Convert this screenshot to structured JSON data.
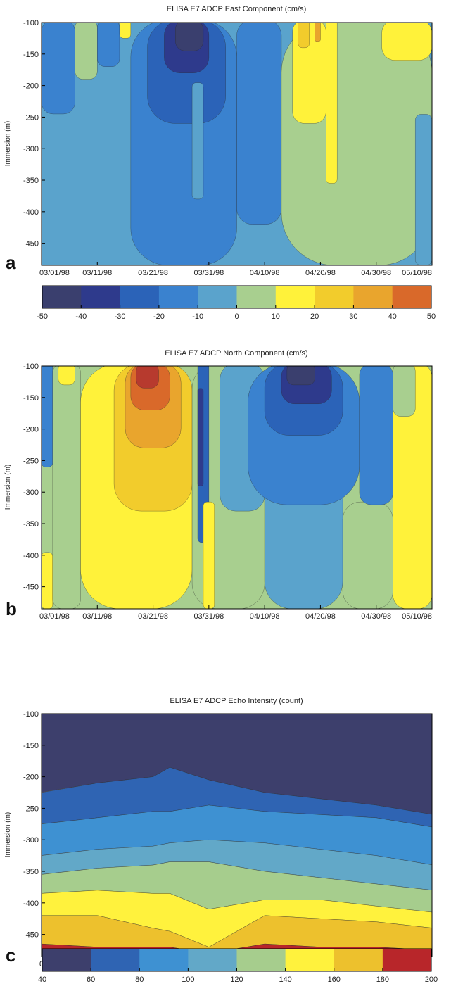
{
  "chart_data": [
    {
      "type": "heatmap",
      "panel_letter": "a",
      "title": "ELISA   E7   ADCP   East Component (cm/s)",
      "ylabel": "Immersion (m)",
      "xlabel": "",
      "ylim": [
        -485,
        -100
      ],
      "yticks": [
        -100,
        -150,
        -200,
        -250,
        -300,
        -350,
        -400,
        -450
      ],
      "ytick_labels": [
        "-100",
        "-150",
        "-200",
        "-250",
        "-300",
        "-350",
        "-400",
        "-450"
      ],
      "xlim": [
        "03/01/98",
        "05/10/98"
      ],
      "xticks": [
        "03/01/98",
        "03/11/98",
        "03/21/98",
        "03/31/98",
        "04/10/98",
        "04/20/98",
        "04/30/98",
        "05/10/98"
      ],
      "background_level": 3,
      "regions": [
        {
          "level": 2,
          "x0": "03/01/98",
          "x1": "03/07/98",
          "y0": -245,
          "y1": -100
        },
        {
          "level": 4,
          "x0": "03/07/98",
          "x1": "03/11/98",
          "y0": -190,
          "y1": -100
        },
        {
          "level": 2,
          "x0": "03/11/98",
          "x1": "03/15/98",
          "y0": -170,
          "y1": -100
        },
        {
          "level": 5,
          "x0": "03/15/98",
          "x1": "03/17/98",
          "y0": -125,
          "y1": -100
        },
        {
          "level": 2,
          "x0": "03/17/98",
          "x1": "04/05/98",
          "y0": -485,
          "y1": -100
        },
        {
          "level": 1,
          "x0": "03/20/98",
          "x1": "04/03/98",
          "y0": -260,
          "y1": -100
        },
        {
          "level": 0,
          "x0": "03/23/98",
          "x1": "03/31/98",
          "y0": -180,
          "y1": -100
        },
        {
          "level": -1,
          "x0": "03/25/98",
          "x1": "03/30/98",
          "y0": -145,
          "y1": -100
        },
        {
          "level": 3,
          "x0": "03/28/98",
          "x1": "03/30/98",
          "y0": -380,
          "y1": -200
        },
        {
          "level": 2,
          "x0": "04/05/98",
          "x1": "04/13/98",
          "y0": -420,
          "y1": -100
        },
        {
          "level": 4,
          "x0": "04/13/98",
          "x1": "05/10/98",
          "y0": -485,
          "y1": -100
        },
        {
          "level": 5,
          "x0": "04/15/98",
          "x1": "04/21/98",
          "y0": -260,
          "y1": -100
        },
        {
          "level": 6,
          "x0": "04/16/98",
          "x1": "04/18/98",
          "y0": -140,
          "y1": -100
        },
        {
          "level": 7,
          "x0": "04/19/98",
          "x1": "04/20/98",
          "y0": -130,
          "y1": -100
        },
        {
          "level": 5,
          "x0": "04/21/98",
          "x1": "04/23/98",
          "y0": -355,
          "y1": -100
        },
        {
          "level": 5,
          "x0": "05/01/98",
          "x1": "05/10/98",
          "y0": -160,
          "y1": -100
        },
        {
          "level": 3,
          "x0": "05/07/98",
          "x1": "05/10/98",
          "y0": -485,
          "y1": -250
        }
      ]
    },
    {
      "type": "heatmap",
      "panel_letter": "b",
      "title": "ELISA   E7   ADCP   North Component (cm/s)",
      "ylabel": "Immersion (m)",
      "xlabel": "",
      "ylim": [
        -485,
        -100
      ],
      "yticks": [
        -100,
        -150,
        -200,
        -250,
        -300,
        -350,
        -400,
        -450
      ],
      "ytick_labels": [
        "-100",
        "-150",
        "-200",
        "-250",
        "-300",
        "-350",
        "-400",
        "-450"
      ],
      "xlim": [
        "03/01/98",
        "05/10/98"
      ],
      "xticks": [
        "03/01/98",
        "03/11/98",
        "03/21/98",
        "03/31/98",
        "04/10/98",
        "04/20/98",
        "04/30/98",
        "05/10/98"
      ],
      "background_level": 4,
      "regions": [
        {
          "level": 2,
          "x0": "03/01/98",
          "x1": "03/03/98",
          "y0": -260,
          "y1": -100
        },
        {
          "level": 5,
          "x0": "03/01/98",
          "x1": "03/03/98",
          "y0": -485,
          "y1": -400
        },
        {
          "level": 4,
          "x0": "03/03/98",
          "x1": "03/08/98",
          "y0": -485,
          "y1": -100
        },
        {
          "level": 5,
          "x0": "03/04/98",
          "x1": "03/07/98",
          "y0": -130,
          "y1": -100
        },
        {
          "level": 5,
          "x0": "03/08/98",
          "x1": "03/28/98",
          "y0": -485,
          "y1": -100
        },
        {
          "level": 6,
          "x0": "03/14/98",
          "x1": "03/28/98",
          "y0": -330,
          "y1": -100
        },
        {
          "level": 7,
          "x0": "03/16/98",
          "x1": "03/26/98",
          "y0": -230,
          "y1": -100
        },
        {
          "level": 8,
          "x0": "03/17/98",
          "x1": "03/24/98",
          "y0": -170,
          "y1": -100
        },
        {
          "level": 9,
          "x0": "03/18/98",
          "x1": "03/22/98",
          "y0": -135,
          "y1": -100
        },
        {
          "level": 4,
          "x0": "03/28/98",
          "x1": "04/10/98",
          "y0": -485,
          "y1": -100
        },
        {
          "level": 1,
          "x0": "03/29/98",
          "x1": "03/31/98",
          "y0": -380,
          "y1": -100
        },
        {
          "level": 0,
          "x0": "03/29/98",
          "x1": "03/30/98",
          "y0": -290,
          "y1": -140
        },
        {
          "level": 5,
          "x0": "03/30/98",
          "x1": "04/01/98",
          "y0": -485,
          "y1": -320
        },
        {
          "level": 3,
          "x0": "04/02/98",
          "x1": "04/10/98",
          "y0": -330,
          "y1": -100
        },
        {
          "level": 3,
          "x0": "04/10/98",
          "x1": "04/24/98",
          "y0": -485,
          "y1": -100
        },
        {
          "level": 2,
          "x0": "04/07/98",
          "x1": "04/27/98",
          "y0": -320,
          "y1": -100
        },
        {
          "level": 1,
          "x0": "04/10/98",
          "x1": "04/24/98",
          "y0": -210,
          "y1": -100
        },
        {
          "level": 0,
          "x0": "04/13/98",
          "x1": "04/22/98",
          "y0": -160,
          "y1": -100
        },
        {
          "level": -1,
          "x0": "04/14/98",
          "x1": "04/19/98",
          "y0": -130,
          "y1": -100
        },
        {
          "level": 4,
          "x0": "04/24/98",
          "x1": "05/03/98",
          "y0": -485,
          "y1": -320
        },
        {
          "level": 2,
          "x0": "04/27/98",
          "x1": "05/03/98",
          "y0": -320,
          "y1": -100
        },
        {
          "level": 5,
          "x0": "05/03/98",
          "x1": "05/10/98",
          "y0": -485,
          "y1": -100
        },
        {
          "level": 4,
          "x0": "05/03/98",
          "x1": "05/07/98",
          "y0": -180,
          "y1": -100
        }
      ]
    },
    {
      "type": "heatmap",
      "panel_letter": "c",
      "title": "ELISA   E7   ADCP   Echo Intensity (count)",
      "ylabel": "Immersion (m)",
      "xlabel": "",
      "ylim": [
        -485,
        -100
      ],
      "yticks": [
        -100,
        -150,
        -200,
        -250,
        -300,
        -350,
        -400,
        -450
      ],
      "ytick_labels": [
        "-100",
        "-150",
        "-200",
        "-250",
        "-300",
        "-350",
        "-400",
        "-450"
      ],
      "xlim": [
        "03/01/98",
        "05/10/98"
      ],
      "xticks": [
        "03/01/98",
        "03/11/98",
        "03/21/98",
        "03/31/98",
        "04/10/98",
        "04/20/98",
        "04/30/98",
        "05/10/98"
      ],
      "band_dates": [
        "03/01/98",
        "03/11/98",
        "03/21/98",
        "03/24/98",
        "03/31/98",
        "04/10/98",
        "04/20/98",
        "04/30/98",
        "05/10/98"
      ],
      "band_levels": [
        0,
        1,
        2,
        3,
        4,
        5,
        6,
        7
      ],
      "band_boundaries": [
        [
          -225,
          -210,
          -200,
          -185,
          -205,
          -225,
          -235,
          -245,
          -260
        ],
        [
          -275,
          -265,
          -255,
          -255,
          -245,
          -255,
          -260,
          -265,
          -280
        ],
        [
          -325,
          -315,
          -310,
          -305,
          -300,
          -305,
          -315,
          -325,
          -340
        ],
        [
          -355,
          -345,
          -340,
          -335,
          -335,
          -350,
          -360,
          -370,
          -380
        ],
        [
          -385,
          -380,
          -385,
          -385,
          -410,
          -395,
          -395,
          -405,
          -415
        ],
        [
          -420,
          -420,
          -440,
          -445,
          -470,
          -420,
          -425,
          -430,
          -440
        ],
        [
          -465,
          -470,
          -470,
          -470,
          -480,
          -465,
          -470,
          -470,
          -475
        ],
        [
          -485,
          -485,
          -485,
          -485,
          -485,
          -485,
          -485,
          -485,
          -485
        ]
      ]
    }
  ],
  "colorbars": [
    {
      "ticks": [
        -50,
        -40,
        -30,
        -20,
        -10,
        0,
        10,
        20,
        30,
        40,
        50
      ],
      "tick_labels": [
        "-50",
        "-40",
        "-30",
        "-20",
        "-10",
        "0",
        "10",
        "20",
        "30",
        "40",
        "50"
      ],
      "levels": [
        -1,
        0,
        1,
        2,
        3,
        4,
        5,
        6,
        7,
        8,
        9,
        10
      ]
    },
    {
      "ticks": [
        40,
        60,
        80,
        100,
        120,
        140,
        160,
        180,
        200
      ],
      "tick_labels": [
        "40",
        "60",
        "80",
        "100",
        "120",
        "140",
        "160",
        "180",
        "200"
      ],
      "levels": [
        0,
        1,
        2,
        3,
        4,
        5,
        6,
        7
      ]
    }
  ],
  "colors": {
    "velocity_palette": [
      "#3a3f6e",
      "#2e3a8c",
      "#2b63b8",
      "#3a82cf",
      "#5aa3cc",
      "#a8cf8f",
      "#fff23a",
      "#f2cc2c",
      "#e9a52d",
      "#d9692a",
      "#b73a2e",
      "#7a4a3e"
    ],
    "echo_palette": [
      "#3d3f6c",
      "#2f64b3",
      "#3e91d2",
      "#62a8c8",
      "#a6cd8d",
      "#fff23d",
      "#edc12d",
      "#b8262a"
    ],
    "contour_line": "#2a2a2a",
    "axis_line": "#000000",
    "text": "#222222"
  }
}
